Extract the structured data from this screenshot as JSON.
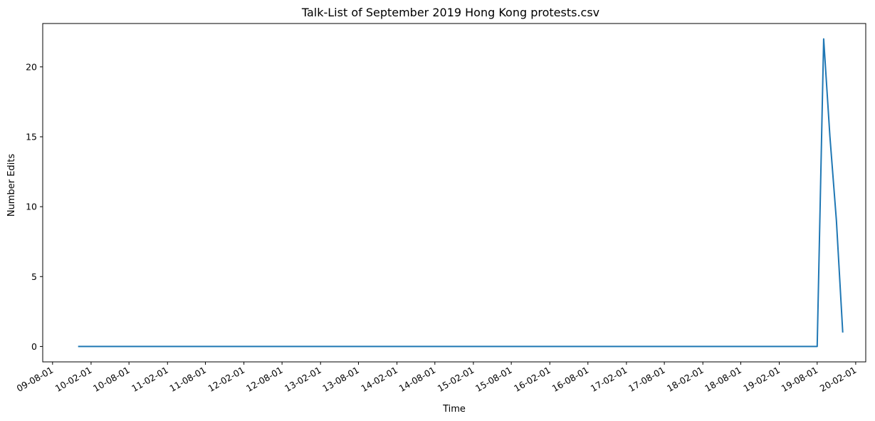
{
  "chart_data": {
    "type": "line",
    "title": "Talk-List of September 2019 Hong Kong protests.csv",
    "xlabel": "Time",
    "ylabel": "Number Edits",
    "x_type": "date",
    "xlim": [
      "2009-06-15",
      "2020-03-20"
    ],
    "ylim": [
      -1.1,
      23.1
    ],
    "grid": false,
    "legend": "none",
    "x_ticks": [
      {
        "date": "2009-08-01",
        "label": "09-08-01"
      },
      {
        "date": "2010-02-01",
        "label": "10-02-01"
      },
      {
        "date": "2010-08-01",
        "label": "10-08-01"
      },
      {
        "date": "2011-02-01",
        "label": "11-02-01"
      },
      {
        "date": "2011-08-01",
        "label": "11-08-01"
      },
      {
        "date": "2012-02-01",
        "label": "12-02-01"
      },
      {
        "date": "2012-08-01",
        "label": "12-08-01"
      },
      {
        "date": "2013-02-01",
        "label": "13-02-01"
      },
      {
        "date": "2013-08-01",
        "label": "13-08-01"
      },
      {
        "date": "2014-02-01",
        "label": "14-02-01"
      },
      {
        "date": "2014-08-01",
        "label": "14-08-01"
      },
      {
        "date": "2015-02-01",
        "label": "15-02-01"
      },
      {
        "date": "2015-08-01",
        "label": "15-08-01"
      },
      {
        "date": "2016-02-01",
        "label": "16-02-01"
      },
      {
        "date": "2016-08-01",
        "label": "16-08-01"
      },
      {
        "date": "2017-02-01",
        "label": "17-02-01"
      },
      {
        "date": "2017-08-01",
        "label": "17-08-01"
      },
      {
        "date": "2018-02-01",
        "label": "18-02-01"
      },
      {
        "date": "2018-08-01",
        "label": "18-08-01"
      },
      {
        "date": "2019-02-01",
        "label": "19-02-01"
      },
      {
        "date": "2019-08-01",
        "label": "19-08-01"
      },
      {
        "date": "2020-02-01",
        "label": "20-02-01"
      }
    ],
    "y_ticks": [
      0,
      5,
      10,
      15,
      20
    ],
    "series": [
      {
        "color": "#1f77b4",
        "points": [
          {
            "x": "2009-12-01",
            "y": 0
          },
          {
            "x": "2019-08-01",
            "y": 0
          },
          {
            "x": "2019-09-01",
            "y": 22
          },
          {
            "x": "2019-10-01",
            "y": 15
          },
          {
            "x": "2019-11-01",
            "y": 9
          },
          {
            "x": "2019-12-01",
            "y": 1
          }
        ]
      }
    ]
  }
}
